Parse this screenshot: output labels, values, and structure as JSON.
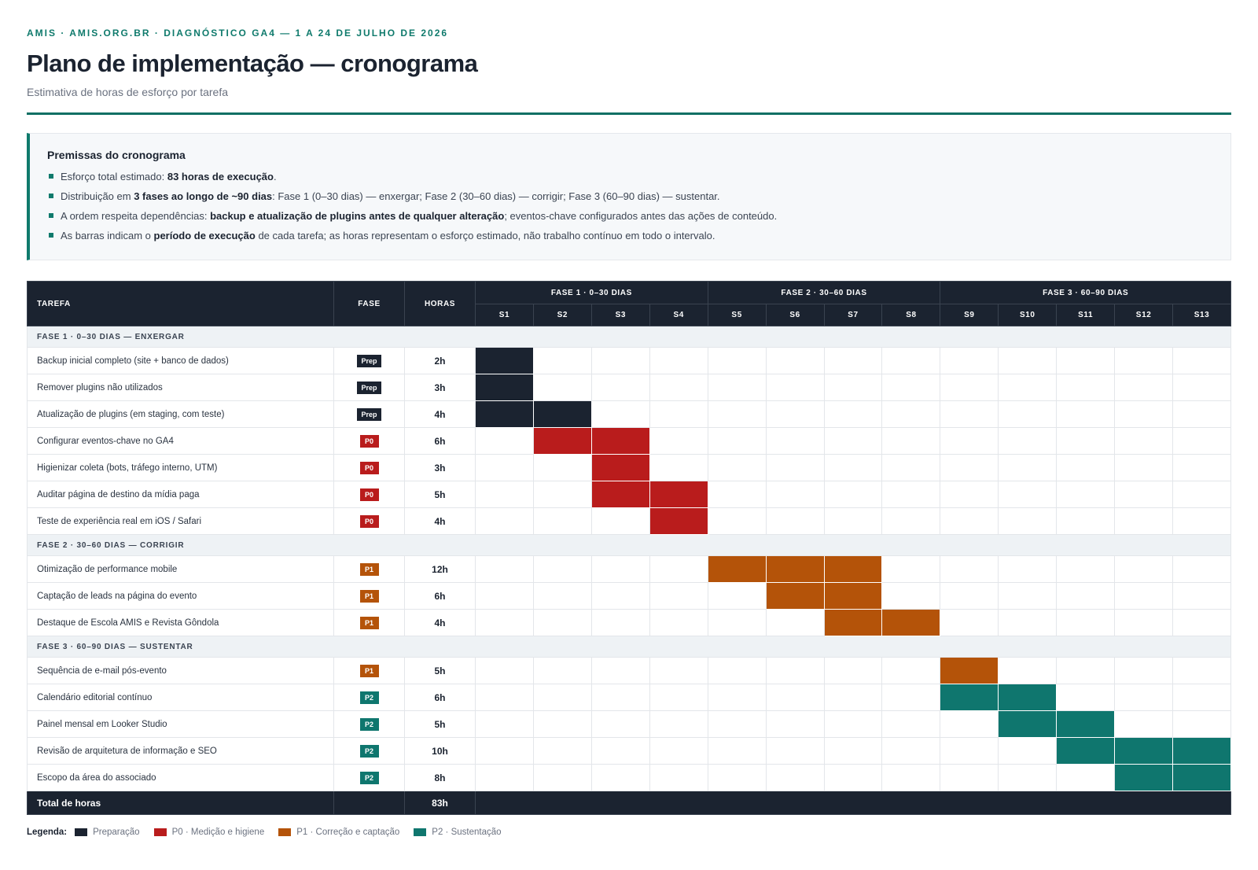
{
  "header": {
    "eyebrow": "AMIS · AMIS.ORG.BR · DIAGNÓSTICO GA4 — 1 A 24 DE JULHO DE 2026",
    "title": "Plano de implementação — cronograma",
    "subtitle": "Estimativa de horas de esforço por tarefa"
  },
  "premises": {
    "title": "Premissas do cronograma",
    "items": [
      [
        {
          "t": "Esforço total estimado: "
        },
        {
          "t": "83 horas de execução",
          "b": true
        },
        {
          "t": "."
        }
      ],
      [
        {
          "t": "Distribuição em "
        },
        {
          "t": "3 fases ao longo de ~90 dias",
          "b": true
        },
        {
          "t": ": Fase 1 (0–30 dias) — enxergar; Fase 2 (30–60 dias) — corrigir; Fase 3 (60–90 dias) — sustentar."
        }
      ],
      [
        {
          "t": "A ordem respeita dependências: "
        },
        {
          "t": "backup e atualização de plugins antes de qualquer alteração",
          "b": true
        },
        {
          "t": "; eventos-chave configurados antes das ações de conteúdo."
        }
      ],
      [
        {
          "t": "As barras indicam o "
        },
        {
          "t": "período de execução",
          "b": true
        },
        {
          "t": " de cada tarefa; as horas representam o esforço estimado, não trabalho contínuo em todo o intervalo."
        }
      ]
    ]
  },
  "table": {
    "col_task": "TAREFA",
    "col_phase": "FASE",
    "col_hours": "HORAS",
    "phase_groups": [
      {
        "label": "FASE 1 · 0–30 DIAS",
        "span": 4
      },
      {
        "label": "FASE 2 · 30–60 DIAS",
        "span": 4
      },
      {
        "label": "FASE 3 · 60–90 DIAS",
        "span": 5
      }
    ],
    "weeks": [
      "S1",
      "S2",
      "S3",
      "S4",
      "S5",
      "S6",
      "S7",
      "S8",
      "S9",
      "S10",
      "S11",
      "S12",
      "S13"
    ],
    "sections": [
      {
        "label": "FASE 1 · 0–30 DIAS — ENXERGAR",
        "tasks": [
          {
            "name": "Backup inicial completo (site + banco de dados)",
            "badge": "Prep",
            "type": "prep",
            "hours": "2h",
            "weeks": [
              1
            ]
          },
          {
            "name": "Remover plugins não utilizados",
            "badge": "Prep",
            "type": "prep",
            "hours": "3h",
            "weeks": [
              1
            ]
          },
          {
            "name": "Atualização de plugins (em staging, com teste)",
            "badge": "Prep",
            "type": "prep",
            "hours": "4h",
            "weeks": [
              1,
              2
            ]
          },
          {
            "name": "Configurar eventos-chave no GA4",
            "badge": "P0",
            "type": "p0",
            "hours": "6h",
            "weeks": [
              2,
              3
            ]
          },
          {
            "name": "Higienizar coleta (bots, tráfego interno, UTM)",
            "badge": "P0",
            "type": "p0",
            "hours": "3h",
            "weeks": [
              3
            ]
          },
          {
            "name": "Auditar página de destino da mídia paga",
            "badge": "P0",
            "type": "p0",
            "hours": "5h",
            "weeks": [
              3,
              4
            ]
          },
          {
            "name": "Teste de experiência real em iOS / Safari",
            "badge": "P0",
            "type": "p0",
            "hours": "4h",
            "weeks": [
              4
            ]
          }
        ]
      },
      {
        "label": "FASE 2 · 30–60 DIAS — CORRIGIR",
        "tasks": [
          {
            "name": "Otimização de performance mobile",
            "badge": "P1",
            "type": "p1",
            "hours": "12h",
            "weeks": [
              5,
              6,
              7
            ]
          },
          {
            "name": "Captação de leads na página do evento",
            "badge": "P1",
            "type": "p1",
            "hours": "6h",
            "weeks": [
              6,
              7
            ]
          },
          {
            "name": "Destaque de Escola AMIS e Revista Gôndola",
            "badge": "P1",
            "type": "p1",
            "hours": "4h",
            "weeks": [
              7,
              8
            ]
          }
        ]
      },
      {
        "label": "FASE 3 · 60–90 DIAS — SUSTENTAR",
        "tasks": [
          {
            "name": "Sequência de e-mail pós-evento",
            "badge": "P1",
            "type": "p1",
            "hours": "5h",
            "weeks": [
              9
            ]
          },
          {
            "name": "Calendário editorial contínuo",
            "badge": "P2",
            "type": "p2",
            "hours": "6h",
            "weeks": [
              9,
              10
            ]
          },
          {
            "name": "Painel mensal em Looker Studio",
            "badge": "P2",
            "type": "p2",
            "hours": "5h",
            "weeks": [
              10,
              11
            ]
          },
          {
            "name": "Revisão de arquitetura de informação e SEO",
            "badge": "P2",
            "type": "p2",
            "hours": "10h",
            "weeks": [
              11,
              12,
              13
            ]
          },
          {
            "name": "Escopo da área do associado",
            "badge": "P2",
            "type": "p2",
            "hours": "8h",
            "weeks": [
              12,
              13
            ]
          }
        ]
      }
    ],
    "total_label": "Total de horas",
    "total_hours": "83h"
  },
  "legend": {
    "label": "Legenda:",
    "items": [
      {
        "label": "Preparação",
        "color": "#1b2330"
      },
      {
        "label": "P0 · Medição e higiene",
        "color": "#b91c1c"
      },
      {
        "label": "P1 · Correção e captação",
        "color": "#b45309"
      },
      {
        "label": "P2 · Sustentação",
        "color": "#0f766e"
      }
    ]
  }
}
